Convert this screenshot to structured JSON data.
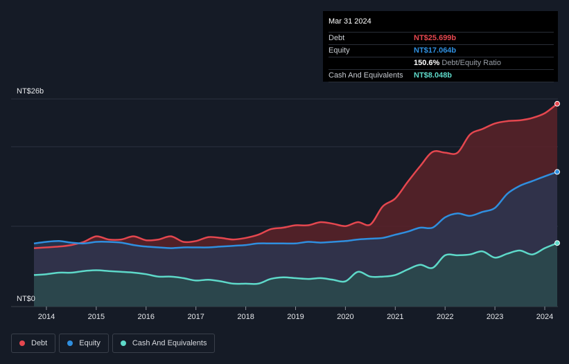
{
  "chart_data": {
    "type": "area",
    "title": "",
    "y_top_label": "NT$26b",
    "y_bottom_label": "NT$0",
    "ylim": [
      0,
      26
    ],
    "xlim": [
      2013.65,
      2024.25
    ],
    "x_ticks": [
      "2014",
      "2015",
      "2016",
      "2017",
      "2018",
      "2019",
      "2020",
      "2021",
      "2022",
      "2023",
      "2024"
    ],
    "series": [
      {
        "name": "Debt",
        "color": "#e5474f",
        "fill": "#5a2229",
        "points": [
          [
            2013.75,
            7.4
          ],
          [
            2014.0,
            7.5
          ],
          [
            2014.25,
            7.6
          ],
          [
            2014.5,
            7.8
          ],
          [
            2014.75,
            8.2
          ],
          [
            2015.0,
            8.9
          ],
          [
            2015.25,
            8.5
          ],
          [
            2015.5,
            8.5
          ],
          [
            2015.75,
            8.9
          ],
          [
            2016.0,
            8.4
          ],
          [
            2016.25,
            8.5
          ],
          [
            2016.5,
            8.9
          ],
          [
            2016.75,
            8.2
          ],
          [
            2017.0,
            8.3
          ],
          [
            2017.25,
            8.8
          ],
          [
            2017.5,
            8.7
          ],
          [
            2017.75,
            8.5
          ],
          [
            2018.0,
            8.7
          ],
          [
            2018.25,
            9.1
          ],
          [
            2018.5,
            9.8
          ],
          [
            2018.75,
            10.0
          ],
          [
            2019.0,
            10.3
          ],
          [
            2019.25,
            10.3
          ],
          [
            2019.5,
            10.7
          ],
          [
            2019.75,
            10.5
          ],
          [
            2020.0,
            10.2
          ],
          [
            2020.25,
            10.7
          ],
          [
            2020.5,
            10.4
          ],
          [
            2020.75,
            12.7
          ],
          [
            2021.0,
            13.7
          ],
          [
            2021.25,
            15.8
          ],
          [
            2021.5,
            17.8
          ],
          [
            2021.75,
            19.6
          ],
          [
            2022.0,
            19.5
          ],
          [
            2022.25,
            19.5
          ],
          [
            2022.5,
            21.8
          ],
          [
            2022.75,
            22.5
          ],
          [
            2023.0,
            23.2
          ],
          [
            2023.25,
            23.5
          ],
          [
            2023.5,
            23.6
          ],
          [
            2023.75,
            23.9
          ],
          [
            2024.0,
            24.5
          ],
          [
            2024.25,
            25.699
          ]
        ]
      },
      {
        "name": "Equity",
        "color": "#2f8fdf",
        "fill": "#2a3550",
        "points": [
          [
            2013.75,
            8.0
          ],
          [
            2014.0,
            8.2
          ],
          [
            2014.25,
            8.3
          ],
          [
            2014.5,
            8.1
          ],
          [
            2014.75,
            8.0
          ],
          [
            2015.0,
            8.2
          ],
          [
            2015.25,
            8.2
          ],
          [
            2015.5,
            8.1
          ],
          [
            2015.75,
            7.8
          ],
          [
            2016.0,
            7.6
          ],
          [
            2016.25,
            7.5
          ],
          [
            2016.5,
            7.4
          ],
          [
            2016.75,
            7.5
          ],
          [
            2017.0,
            7.5
          ],
          [
            2017.25,
            7.5
          ],
          [
            2017.5,
            7.6
          ],
          [
            2017.75,
            7.7
          ],
          [
            2018.0,
            7.8
          ],
          [
            2018.25,
            8.0
          ],
          [
            2018.5,
            8.0
          ],
          [
            2018.75,
            8.0
          ],
          [
            2019.0,
            8.0
          ],
          [
            2019.25,
            8.2
          ],
          [
            2019.5,
            8.1
          ],
          [
            2019.75,
            8.2
          ],
          [
            2020.0,
            8.3
          ],
          [
            2020.25,
            8.5
          ],
          [
            2020.5,
            8.6
          ],
          [
            2020.75,
            8.7
          ],
          [
            2021.0,
            9.1
          ],
          [
            2021.25,
            9.5
          ],
          [
            2021.5,
            10.0
          ],
          [
            2021.75,
            10.0
          ],
          [
            2022.0,
            11.3
          ],
          [
            2022.25,
            11.8
          ],
          [
            2022.5,
            11.5
          ],
          [
            2022.75,
            12.0
          ],
          [
            2023.0,
            12.5
          ],
          [
            2023.25,
            14.3
          ],
          [
            2023.5,
            15.3
          ],
          [
            2023.75,
            15.9
          ],
          [
            2024.0,
            16.5
          ],
          [
            2024.25,
            17.064
          ]
        ]
      },
      {
        "name": "Cash And Equivalents",
        "color": "#5ed9c9",
        "fill": "#2a4a4c",
        "points": [
          [
            2013.75,
            4.0
          ],
          [
            2014.0,
            4.1
          ],
          [
            2014.25,
            4.3
          ],
          [
            2014.5,
            4.3
          ],
          [
            2014.75,
            4.5
          ],
          [
            2015.0,
            4.6
          ],
          [
            2015.25,
            4.5
          ],
          [
            2015.5,
            4.4
          ],
          [
            2015.75,
            4.3
          ],
          [
            2016.0,
            4.1
          ],
          [
            2016.25,
            3.8
          ],
          [
            2016.5,
            3.8
          ],
          [
            2016.75,
            3.6
          ],
          [
            2017.0,
            3.3
          ],
          [
            2017.25,
            3.4
          ],
          [
            2017.5,
            3.2
          ],
          [
            2017.75,
            2.9
          ],
          [
            2018.0,
            2.9
          ],
          [
            2018.25,
            2.9
          ],
          [
            2018.5,
            3.5
          ],
          [
            2018.75,
            3.7
          ],
          [
            2019.0,
            3.6
          ],
          [
            2019.25,
            3.5
          ],
          [
            2019.5,
            3.6
          ],
          [
            2019.75,
            3.4
          ],
          [
            2020.0,
            3.2
          ],
          [
            2020.25,
            4.4
          ],
          [
            2020.5,
            3.8
          ],
          [
            2020.75,
            3.8
          ],
          [
            2021.0,
            4.0
          ],
          [
            2021.25,
            4.7
          ],
          [
            2021.5,
            5.3
          ],
          [
            2021.75,
            4.9
          ],
          [
            2022.0,
            6.5
          ],
          [
            2022.25,
            6.5
          ],
          [
            2022.5,
            6.6
          ],
          [
            2022.75,
            7.0
          ],
          [
            2023.0,
            6.2
          ],
          [
            2023.25,
            6.7
          ],
          [
            2023.5,
            7.1
          ],
          [
            2023.75,
            6.6
          ],
          [
            2024.0,
            7.4
          ],
          [
            2024.25,
            8.048
          ]
        ]
      }
    ]
  },
  "tooltip": {
    "date": "Mar 31 2024",
    "debt_label": "Debt",
    "debt_value": "NT$25.699b",
    "equity_label": "Equity",
    "equity_value": "NT$17.064b",
    "ratio_value": "150.6%",
    "ratio_label": "Debt/Equity Ratio",
    "cash_label": "Cash And Equivalents",
    "cash_value": "NT$8.048b"
  },
  "legend": {
    "debt": "Debt",
    "equity": "Equity",
    "cash": "Cash And Equivalents"
  },
  "colors": {
    "debt": "#e5474f",
    "equity": "#2f8fdf",
    "cash": "#5ed9c9"
  }
}
